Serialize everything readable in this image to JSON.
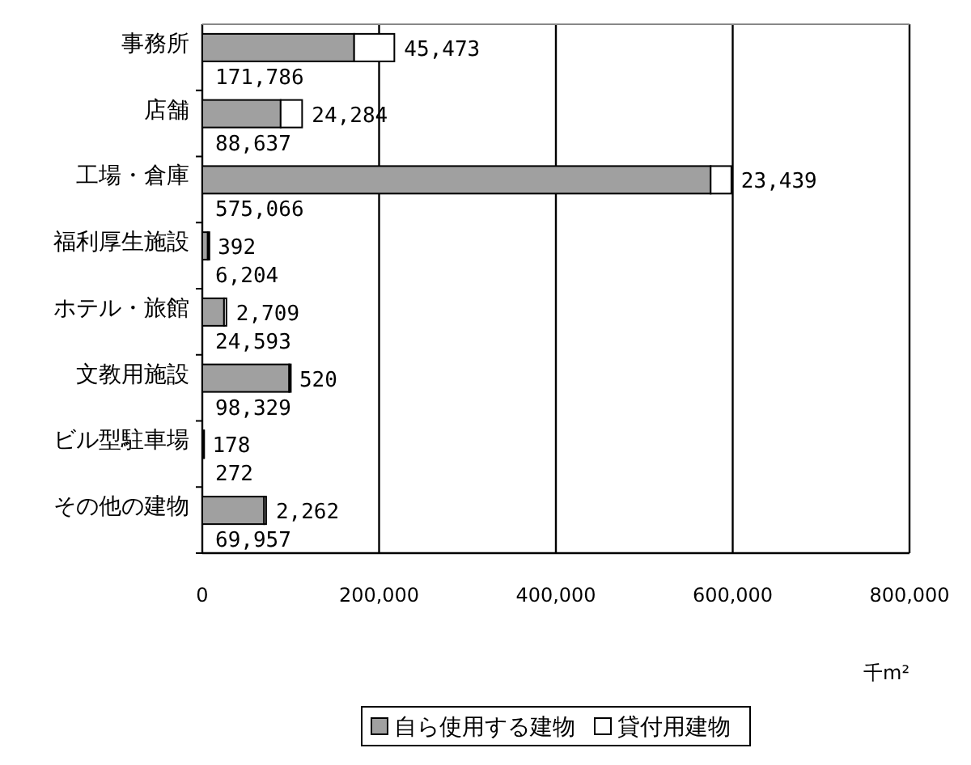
{
  "chart_data": {
    "type": "bar",
    "orientation": "horizontal",
    "stacked": true,
    "xlabel": "千m²",
    "categories": [
      "事務所",
      "店舗",
      "工場・倉庫",
      "福利厚生施設",
      "ホテル・旅館",
      "文教用施設",
      "ビル型駐車場",
      "その他の建物"
    ],
    "series": [
      {
        "name": "自ら使用する建物",
        "color": "#a0a0a0",
        "values": [
          171786,
          88637,
          575066,
          6204,
          24593,
          98329,
          272,
          69957
        ],
        "value_labels": [
          "171,786",
          "88,637",
          "575,066",
          "6,204",
          "24,593",
          "98,329",
          "272",
          "69,957"
        ]
      },
      {
        "name": "貸付用建物",
        "color": "#ffffff",
        "values": [
          45473,
          24284,
          23439,
          392,
          2709,
          520,
          178,
          2262
        ],
        "value_labels": [
          "45,473",
          "24,284",
          "23,439",
          "392",
          "2,709",
          "520",
          "178",
          "2,262"
        ]
      }
    ],
    "xlim": [
      0,
      800000
    ],
    "xticks": [
      {
        "value": 0,
        "label": "0"
      },
      {
        "value": 200000,
        "label": "200,000"
      },
      {
        "value": 400000,
        "label": "400,000"
      },
      {
        "value": 600000,
        "label": "600,000"
      },
      {
        "value": 800000,
        "label": "800,000"
      }
    ],
    "grid": "x",
    "legend": "bottom"
  }
}
